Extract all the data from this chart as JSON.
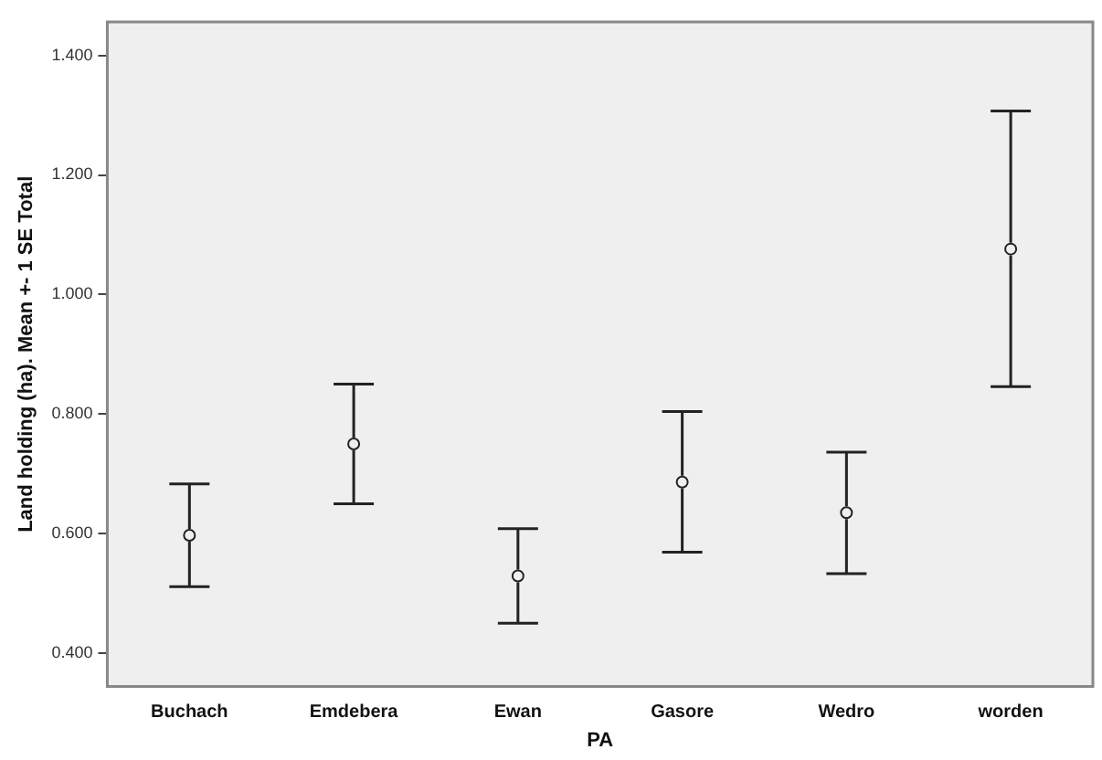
{
  "chart_data": {
    "type": "scatter",
    "xlabel": "PA",
    "ylabel": "Land holding (ha). Mean +- 1 SE Total",
    "categories": [
      "Buchach",
      "Emdebera",
      "Ewan",
      "Gasore",
      "Wedro",
      "worden"
    ],
    "values": [
      0.597,
      0.75,
      0.529,
      0.686,
      0.635,
      1.076
    ],
    "errors": [
      [
        0.511,
        0.683
      ],
      [
        0.65,
        0.85
      ],
      [
        0.45,
        0.608
      ],
      [
        0.569,
        0.804
      ],
      [
        0.533,
        0.736
      ],
      [
        0.846,
        1.307
      ]
    ],
    "color": "#222222",
    "marker": "circle",
    "grid": false,
    "legend": false,
    "ylim": [
      0.344,
      1.456
    ],
    "yticks": [
      {
        "value": 0.4,
        "label": "0.400"
      },
      {
        "value": 0.6,
        "label": "0.600"
      },
      {
        "value": 0.8,
        "label": "0.800"
      },
      {
        "value": 1.0,
        "label": "1.000"
      },
      {
        "value": 1.2,
        "label": "1.200"
      },
      {
        "value": 1.4,
        "label": "1.400"
      }
    ]
  }
}
